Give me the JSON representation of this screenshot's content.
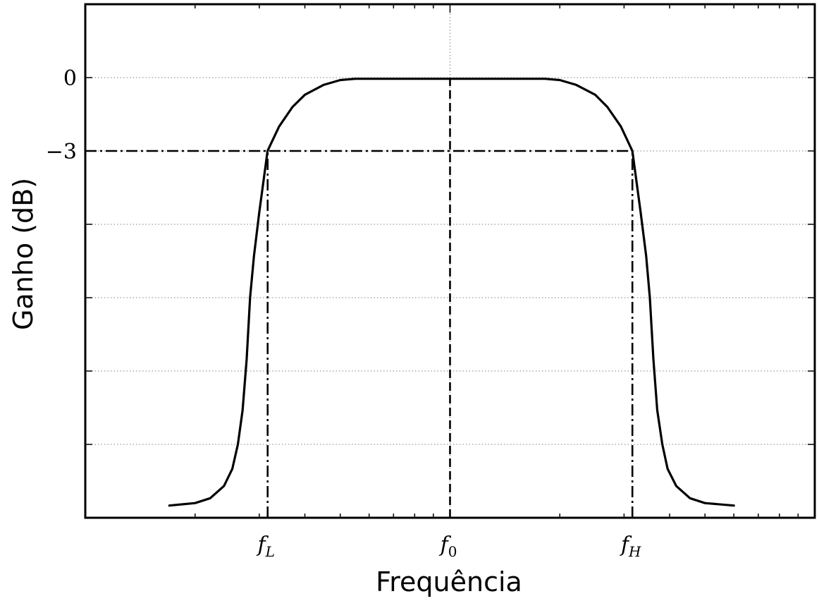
{
  "chart_data": {
    "type": "line",
    "title": "",
    "xlabel": "Frequência",
    "ylabel": "Ganho (dB)",
    "x_scale": "log",
    "xlim": [
      0.1,
      10
    ],
    "ylim": [
      -18,
      3
    ],
    "grid": true,
    "y_ticks": [
      {
        "value": 0,
        "label": "0"
      },
      {
        "value": -3,
        "label": "−3"
      }
    ],
    "x_ticks": [
      {
        "value": 0.3162,
        "name": "f",
        "sub": "L"
      },
      {
        "value": 1.0,
        "name": "f",
        "sub": "0"
      },
      {
        "value": 3.162,
        "name": "f",
        "sub": "H"
      }
    ],
    "series": [
      {
        "points": [
          [
            0.17,
            -17.5
          ],
          [
            0.2,
            -17.4
          ],
          [
            0.22,
            -17.2
          ],
          [
            0.24,
            -16.7
          ],
          [
            0.253,
            -16.0
          ],
          [
            0.262,
            -15.0
          ],
          [
            0.27,
            -13.6
          ],
          [
            0.277,
            -11.5
          ],
          [
            0.283,
            -9.0
          ],
          [
            0.29,
            -7.3
          ],
          [
            0.3,
            -5.5
          ],
          [
            0.316,
            -3.0
          ],
          [
            0.34,
            -2.0
          ],
          [
            0.37,
            -1.2
          ],
          [
            0.4,
            -0.7
          ],
          [
            0.45,
            -0.3
          ],
          [
            0.5,
            -0.1
          ],
          [
            0.55,
            -0.05
          ],
          [
            1.0,
            -0.05
          ],
          [
            1.82,
            -0.05
          ],
          [
            2.0,
            -0.1
          ],
          [
            2.22,
            -0.3
          ],
          [
            2.5,
            -0.7
          ],
          [
            2.7,
            -1.2
          ],
          [
            2.94,
            -2.0
          ],
          [
            3.162,
            -3.0
          ],
          [
            3.33,
            -5.5
          ],
          [
            3.45,
            -7.3
          ],
          [
            3.53,
            -9.0
          ],
          [
            3.61,
            -11.5
          ],
          [
            3.7,
            -13.6
          ],
          [
            3.82,
            -15.0
          ],
          [
            3.95,
            -16.0
          ],
          [
            4.17,
            -16.7
          ],
          [
            4.55,
            -17.2
          ],
          [
            5.0,
            -17.4
          ],
          [
            6.0,
            -17.5
          ]
        ]
      }
    ],
    "reference_lines": [
      {
        "type": "horizontal",
        "y": -3,
        "x_from": 0.1,
        "x_to": 3.162,
        "style": "dash-dot"
      },
      {
        "type": "vertical",
        "x": 0.3162,
        "y_from": -18,
        "y_to": -3,
        "style": "dash-dot"
      },
      {
        "type": "vertical",
        "x": 3.162,
        "y_from": -18,
        "y_to": -3,
        "style": "dash-dot"
      },
      {
        "type": "vertical",
        "x": 1.0,
        "y_from": -18,
        "y_to": 0,
        "style": "dashed"
      }
    ],
    "colors": {
      "line": "#000000",
      "grid": "#808080",
      "axes": "#000000"
    }
  }
}
